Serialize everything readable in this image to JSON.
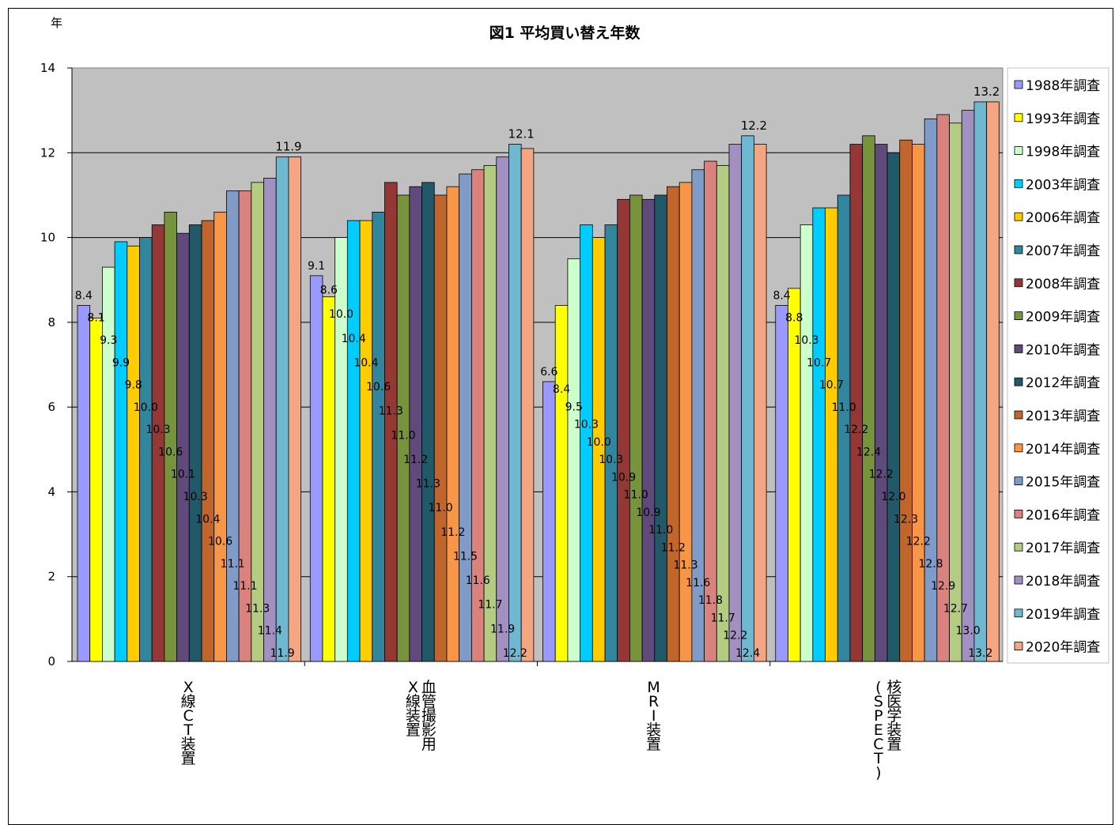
{
  "chart_data": {
    "type": "bar",
    "title": "図1 平均買い替え年数",
    "ylabel": "年",
    "xlabel": "",
    "ylim": [
      0,
      14
    ],
    "yticks": [
      0,
      2,
      4,
      6,
      8,
      10,
      12,
      14
    ],
    "grid": true,
    "legend_position": "right",
    "categories": [
      "X線CT装置",
      "血管撮影用X線装置",
      "MRI装置",
      "核医学装置(SPECT)"
    ],
    "category_lines": [
      [
        "X",
        "線",
        "C",
        "T",
        "装",
        "置"
      ],
      [
        "血",
        "管",
        "撮",
        "影",
        "用"
      ],
      [
        "X",
        "線",
        "装",
        "置"
      ],
      [
        "M",
        "R",
        "I",
        "装",
        "置"
      ],
      [
        "核",
        "医",
        "学",
        "装",
        "置"
      ],
      [
        "(",
        "S",
        "P",
        "E",
        "C",
        "T",
        ")"
      ]
    ],
    "series": [
      {
        "name": "1988年調査",
        "color": "#9999ff",
        "values": [
          8.4,
          9.1,
          6.6,
          8.4
        ]
      },
      {
        "name": "1993年調査",
        "color": "#ffff00",
        "values": [
          8.1,
          8.6,
          8.4,
          8.8
        ]
      },
      {
        "name": "1998年調査",
        "color": "#ccffcc",
        "values": [
          9.3,
          10.0,
          9.5,
          10.3
        ]
      },
      {
        "name": "2003年調査",
        "color": "#00ccff",
        "values": [
          9.9,
          10.4,
          10.3,
          10.7
        ]
      },
      {
        "name": "2006年調査",
        "color": "#ffcc00",
        "values": [
          9.8,
          10.4,
          10.0,
          10.7
        ]
      },
      {
        "name": "2007年調査",
        "color": "#31859c",
        "values": [
          10.0,
          10.6,
          10.3,
          11.0
        ]
      },
      {
        "name": "2008年調査",
        "color": "#953735",
        "values": [
          10.3,
          11.3,
          10.9,
          12.2
        ]
      },
      {
        "name": "2009年調査",
        "color": "#77933c",
        "values": [
          10.6,
          11.0,
          11.0,
          12.4
        ]
      },
      {
        "name": "2010年調査",
        "color": "#604a7b",
        "values": [
          10.1,
          11.2,
          10.9,
          12.2
        ]
      },
      {
        "name": "2012年調査",
        "color": "#215968",
        "values": [
          10.3,
          11.3,
          11.0,
          12.0
        ]
      },
      {
        "name": "2013年調査",
        "color": "#c0652b",
        "values": [
          10.4,
          11.0,
          11.2,
          12.3
        ]
      },
      {
        "name": "2014年調査",
        "color": "#f79646",
        "values": [
          10.6,
          11.2,
          11.3,
          12.2
        ]
      },
      {
        "name": "2015年調査",
        "color": "#7f9cc8",
        "values": [
          11.1,
          11.5,
          11.6,
          12.8
        ]
      },
      {
        "name": "2016年調査",
        "color": "#d9827e",
        "values": [
          11.1,
          11.6,
          11.8,
          12.9
        ]
      },
      {
        "name": "2017年調査",
        "color": "#b3cc82",
        "values": [
          11.3,
          11.7,
          11.7,
          12.7
        ]
      },
      {
        "name": "2018年調査",
        "color": "#a291c0",
        "values": [
          11.4,
          11.9,
          12.2,
          13.0
        ]
      },
      {
        "name": "2019年調査",
        "color": "#70b8d0",
        "values": [
          11.9,
          12.2,
          12.4,
          13.2
        ]
      },
      {
        "name": "2020年調査",
        "color": "#f4a582",
        "values": [
          11.9,
          12.1,
          12.2,
          13.2
        ]
      }
    ],
    "top_labels": [
      "11.9",
      "12.1",
      "12.2",
      "13.2"
    ],
    "data_labels": [
      [
        "8.4",
        "8.1",
        "9.3",
        "9.9",
        "9.8",
        "10.0",
        "10.3",
        "10.6",
        "10.1",
        "10.3",
        "10.4",
        "10.6",
        "11.1",
        "11.1",
        "11.3",
        "11.4",
        "11.9"
      ],
      [
        "9.1",
        "8.6",
        "10.0",
        "10.4",
        "10.4",
        "10.6",
        "11.3",
        "11.0",
        "11.2",
        "11.3",
        "11.0",
        "11.2",
        "11.5",
        "11.6",
        "11.7",
        "11.9",
        "12.2"
      ],
      [
        "6.6",
        "8.4",
        "9.5",
        "10.3",
        "10.0",
        "10.3",
        "10.9",
        "11.0",
        "10.9",
        "11.0",
        "11.2",
        "11.3",
        "11.6",
        "11.8",
        "11.7",
        "12.2",
        "12.4"
      ],
      [
        "8.4",
        "8.8",
        "10.3",
        "10.7",
        "10.7",
        "11.0",
        "12.2",
        "12.4",
        "12.2",
        "12.0",
        "12.3",
        "12.2",
        "12.8",
        "12.9",
        "12.7",
        "13.0",
        "13.2"
      ]
    ],
    "plot_background": "#c0c0c0"
  }
}
